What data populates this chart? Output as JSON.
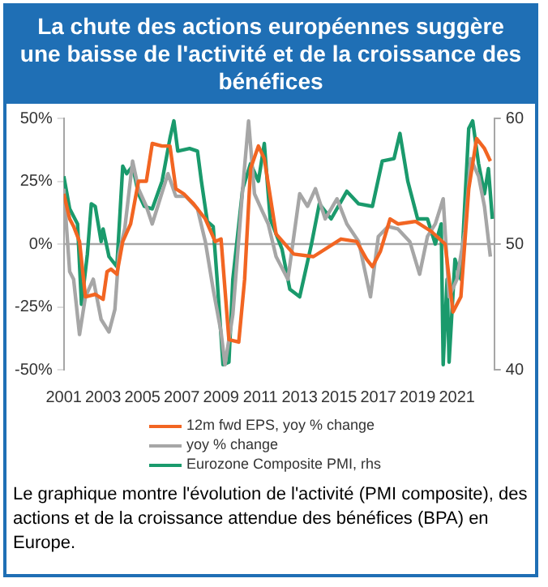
{
  "chart_data": {
    "type": "line",
    "title": "La chute des actions européennes suggère une baisse de l'activité et de la croissance des bénéfices",
    "xlim": [
      2001,
      2022.9
    ],
    "xticks": [
      2001,
      2003,
      2005,
      2007,
      2009,
      2011,
      2013,
      2015,
      2017,
      2019,
      2021
    ],
    "ylim": [
      -50,
      50
    ],
    "yticks": [
      {
        "value": -50,
        "label": "-50%"
      },
      {
        "value": -25,
        "label": "-25%"
      },
      {
        "value": 0,
        "label": "0%"
      },
      {
        "value": 25,
        "label": "25%"
      },
      {
        "value": 50,
        "label": "50%"
      }
    ],
    "y2lim": [
      40,
      60
    ],
    "y2ticks": [
      40,
      50,
      60
    ],
    "grid": false,
    "legend": "bottom",
    "marker": "none",
    "line_style": "solid",
    "ref_lines": [
      {
        "axis": "y",
        "value": 0,
        "color": "#a6a6a6"
      }
    ],
    "series": [
      {
        "name": "12m fwd EPS, yoy % change",
        "color": "#f26522",
        "x": [
          2001.0,
          2001.3,
          2001.5,
          2001.8,
          2002.1,
          2002.6,
          2003.0,
          2003.2,
          2003.4,
          2003.7,
          2004.0,
          2004.4,
          2004.8,
          2005.2,
          2005.5,
          2006.0,
          2006.4,
          2006.7,
          2007.1,
          2007.6,
          2008.2,
          2008.7,
          2009.0,
          2009.4,
          2009.9,
          2010.2,
          2010.5,
          2010.9,
          2011.2,
          2011.8,
          2012.7,
          2013.7,
          2015.1,
          2015.9,
          2016.4,
          2016.7,
          2017.1,
          2017.6,
          2018.0,
          2018.9,
          2019.7,
          2020.4,
          2020.8,
          2021.2,
          2021.6,
          2022.0,
          2022.4,
          2022.7
        ],
        "values": [
          20,
          10,
          7,
          1,
          -21,
          -20,
          -22,
          -11,
          -10,
          -12,
          1,
          8,
          25,
          25,
          40,
          39,
          39,
          22,
          20,
          16,
          10,
          1,
          2,
          -38,
          -39,
          -14,
          30,
          39,
          34,
          4,
          -4,
          -5,
          2,
          1,
          -6,
          -9,
          -3,
          10,
          8,
          9,
          5,
          0,
          -27,
          -21,
          22,
          42,
          38,
          33
        ]
      },
      {
        "name": "yoy % change",
        "color": "#a6a6a6",
        "x": [
          2001.0,
          2001.3,
          2001.5,
          2001.8,
          2002.1,
          2002.5,
          2002.9,
          2003.3,
          2003.6,
          2003.8,
          2004.1,
          2004.5,
          2004.8,
          2005.2,
          2005.5,
          2005.9,
          2006.3,
          2006.7,
          2007.2,
          2007.8,
          2008.2,
          2008.6,
          2009.0,
          2009.2,
          2009.6,
          2010.1,
          2010.4,
          2010.7,
          2011.1,
          2011.4,
          2011.8,
          2012.4,
          2013.0,
          2013.4,
          2013.8,
          2014.3,
          2014.9,
          2015.4,
          2016.0,
          2016.6,
          2017.0,
          2017.5,
          2018.0,
          2018.6,
          2019.1,
          2019.5,
          2019.9,
          2020.3,
          2020.6,
          2021.0,
          2021.4,
          2021.7,
          2022.1,
          2022.4,
          2022.7
        ],
        "values": [
          22,
          -11,
          -14,
          -36,
          -21,
          -14,
          -30,
          -35,
          -26,
          -4,
          6,
          33,
          22,
          15,
          8,
          18,
          28,
          19,
          19,
          14,
          1,
          -18,
          -35,
          -48,
          -28,
          22,
          49,
          20,
          13,
          8,
          -5,
          -14,
          20,
          15,
          22,
          10,
          18,
          8,
          1,
          -21,
          3,
          7,
          6,
          1,
          -12,
          3,
          8,
          18,
          -21,
          -14,
          5,
          34,
          27,
          15,
          -5
        ]
      },
      {
        "name": "Eurozone Composite PMI, rhs",
        "color": "#1a9a6c",
        "axis": "y2",
        "x": [
          2001.0,
          2001.3,
          2001.7,
          2001.9,
          2002.2,
          2002.4,
          2002.6,
          2002.9,
          2003.0,
          2003.3,
          2003.7,
          2004.0,
          2004.2,
          2004.5,
          2004.8,
          2005.1,
          2005.5,
          2006.0,
          2006.4,
          2006.6,
          2006.8,
          2007.4,
          2007.8,
          2008.0,
          2008.3,
          2008.6,
          2008.8,
          2009.1,
          2009.4,
          2009.6,
          2010.1,
          2010.5,
          2010.9,
          2011.2,
          2011.5,
          2012.1,
          2012.5,
          2013.0,
          2013.2,
          2013.6,
          2014.0,
          2014.6,
          2015.4,
          2016.0,
          2016.7,
          2017.2,
          2017.8,
          2018.1,
          2018.5,
          2019.0,
          2019.5,
          2019.9,
          2020.2,
          2020.3,
          2020.5,
          2020.6,
          2020.9,
          2021.2,
          2021.6,
          2021.8,
          2022.1,
          2022.4,
          2022.6,
          2022.8
        ],
        "values": [
          55.4,
          52.8,
          51.6,
          45.2,
          49.2,
          53.2,
          53,
          50.2,
          51.2,
          49,
          48.2,
          56.2,
          55.6,
          56.2,
          54,
          53,
          52.8,
          55,
          58.4,
          59.8,
          57.4,
          57.6,
          57.4,
          55,
          51.8,
          51.4,
          47.2,
          40.4,
          40.6,
          47.2,
          54.4,
          56.4,
          55,
          58,
          52,
          49.6,
          46.4,
          45.8,
          47.2,
          50,
          53.2,
          52,
          54.2,
          53.2,
          53,
          56.6,
          56.8,
          58.8,
          55,
          52,
          52,
          50,
          51.6,
          40.4,
          47.2,
          40.6,
          48.8,
          47.2,
          59.2,
          59.8,
          56.4,
          54,
          56,
          52
        ]
      }
    ],
    "annotations": [
      "Le graphique montre l'évolution de l'activité (PMI composite), des actions et de la croissance attendue des bénéfices (BPA) en Europe."
    ]
  }
}
